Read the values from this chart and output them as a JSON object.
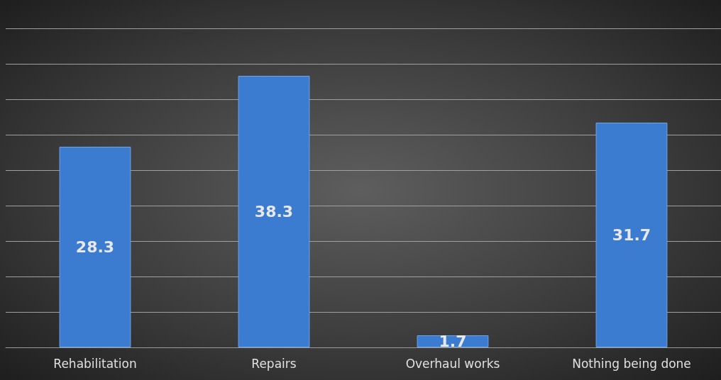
{
  "chart_data": {
    "type": "bar",
    "categories": [
      "Rehabilitation",
      "Repairs",
      "Overhaul works",
      "Nothing being done"
    ],
    "values": [
      28.3,
      38.3,
      1.7,
      31.7
    ],
    "color": "#3b7bd0",
    "ylim": [
      0,
      45
    ],
    "yticks": [
      {
        "value": 0,
        "label": null
      },
      {
        "value": 5,
        "label": null
      },
      {
        "value": 10,
        "label": null
      },
      {
        "value": 15,
        "label": null
      },
      {
        "value": 20,
        "label": null
      },
      {
        "value": 25,
        "label": null
      },
      {
        "value": 30,
        "label": null
      },
      {
        "value": 35,
        "label": null
      },
      {
        "value": 40,
        "label": null
      },
      {
        "value": 45,
        "label": null
      }
    ],
    "tick_labels": "x",
    "grid": "y",
    "data_labels": true
  }
}
